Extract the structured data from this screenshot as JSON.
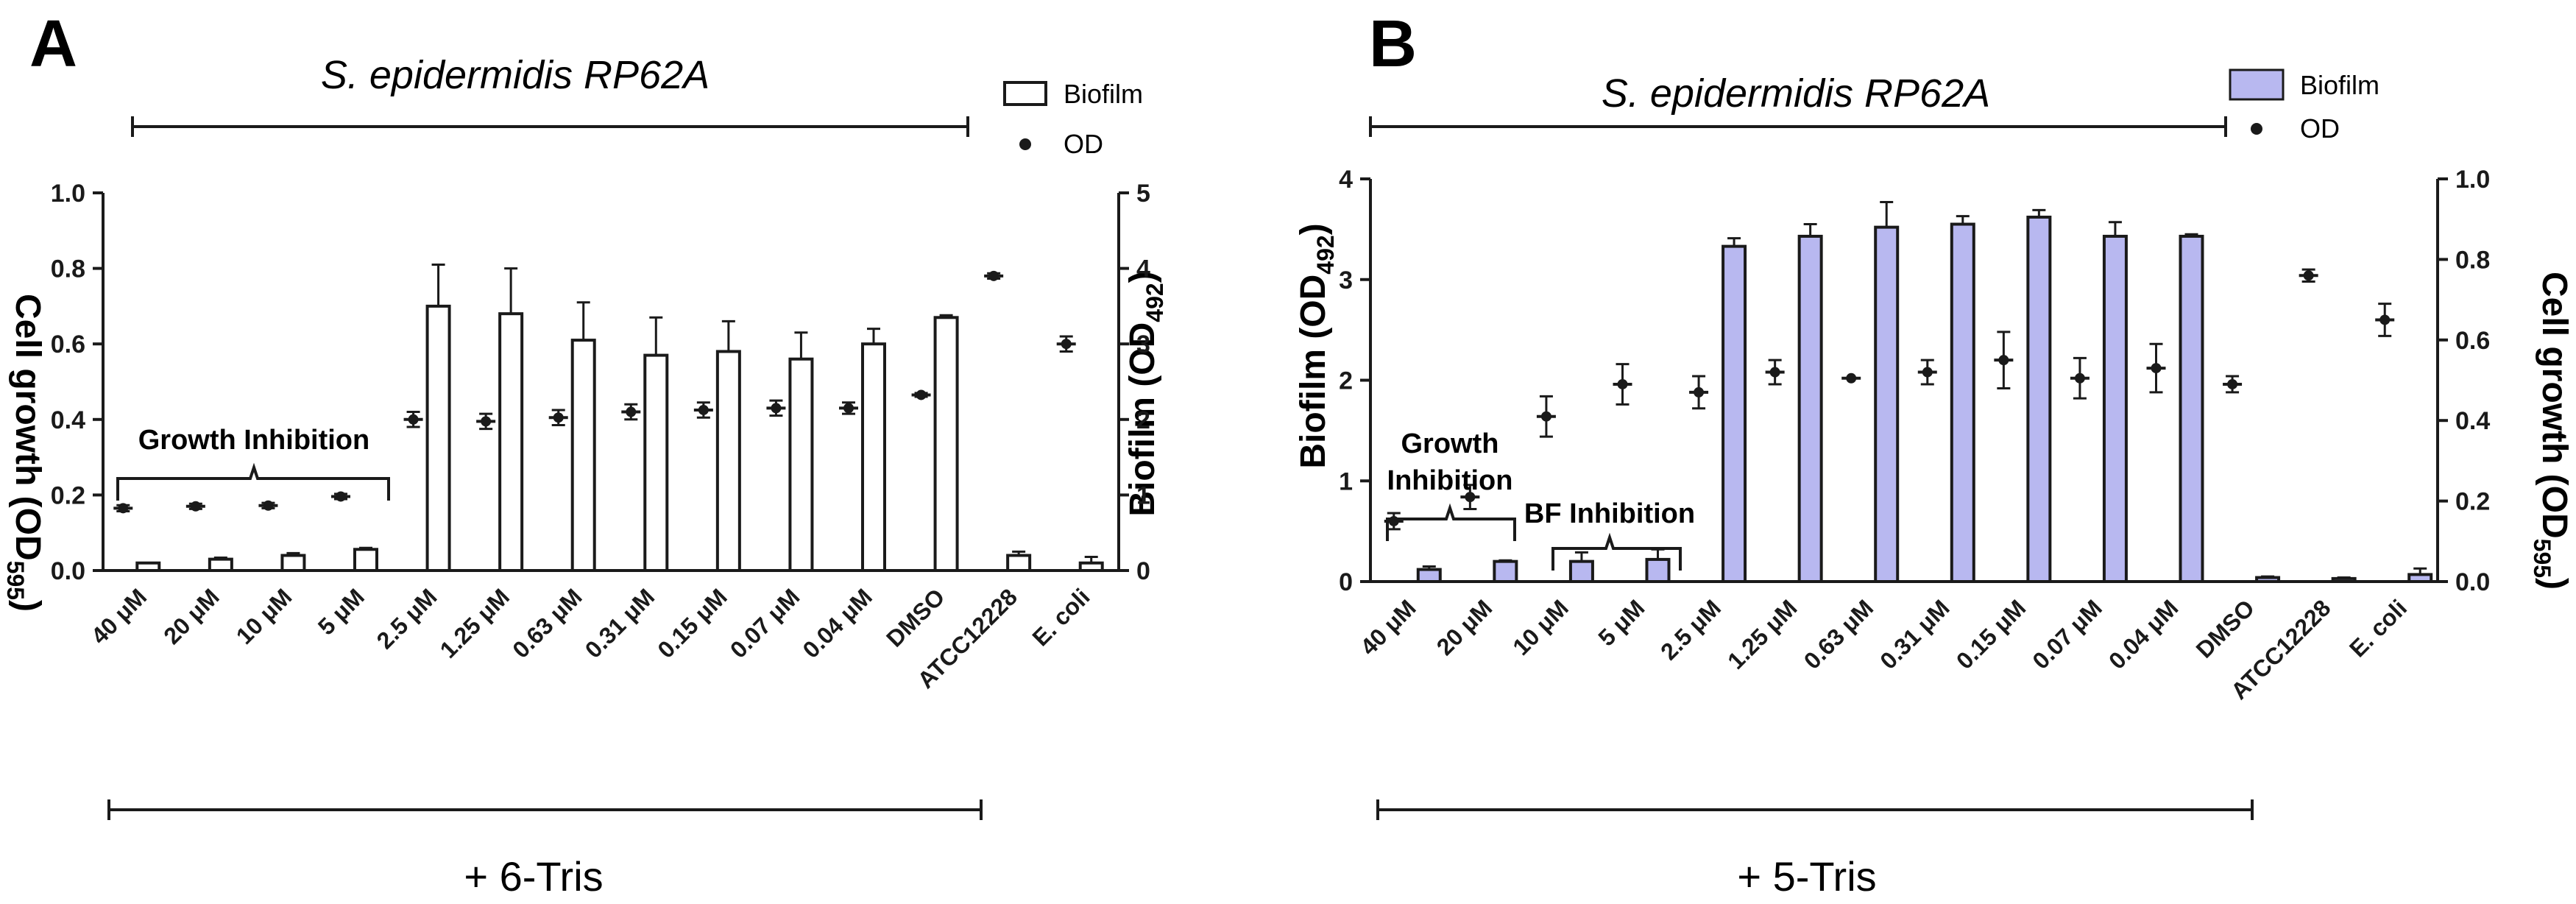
{
  "colors": {
    "bar_a_fill": "#ffffff",
    "bar_b_fill": "#b8b8f0",
    "stroke": "#1a1a1a",
    "background": "#ffffff"
  },
  "chart_data": [
    {
      "type": "bar",
      "panel_label": "A",
      "title": "S. epidermidis RP62A",
      "compound_label": "+ 6-Tris",
      "annotations": [
        "Growth Inhibition"
      ],
      "categories": [
        "40 μM",
        "20 μM",
        "10 μM",
        "5 μM",
        "2.5 μM",
        "1.25 μM",
        "0.63 μM",
        "0.31 μM",
        "0.15 μM",
        "0.07 μM",
        "0.04 μM",
        "DMSO",
        "ATCC12228",
        "E. coli"
      ],
      "left_axis": {
        "label_main": "Cell growth (OD",
        "label_sub": "595",
        "label_close": ")",
        "ylim": [
          0,
          1.0
        ],
        "ticks": [
          "0.0",
          "0.2",
          "0.4",
          "0.6",
          "0.8",
          "1.0"
        ]
      },
      "right_axis": {
        "label_main": "Biofilm (OD",
        "label_sub": "492",
        "label_close": ")",
        "ylim": [
          0,
          5
        ],
        "ticks": [
          "0",
          "1",
          "2",
          "3",
          "4",
          "5"
        ]
      },
      "legend": {
        "position": "top-right",
        "bar_label": "Biofilm",
        "dot_label": "OD"
      },
      "series": [
        {
          "name": "Biofilm",
          "axis": "right",
          "kind": "bar",
          "values": [
            0.1,
            0.15,
            0.2,
            0.28,
            3.5,
            3.4,
            3.05,
            2.85,
            2.9,
            2.8,
            3.0,
            3.35,
            0.2,
            0.1
          ],
          "errors": [
            0.0,
            0.02,
            0.03,
            0.02,
            0.55,
            0.6,
            0.5,
            0.5,
            0.4,
            0.35,
            0.2,
            0.03,
            0.05,
            0.08
          ]
        },
        {
          "name": "OD",
          "axis": "left",
          "kind": "dot",
          "values": [
            0.165,
            0.17,
            0.172,
            0.196,
            0.4,
            0.395,
            0.405,
            0.42,
            0.425,
            0.43,
            0.43,
            0.465,
            0.78,
            0.6
          ],
          "errors": [
            0.008,
            0.007,
            0.007,
            0.007,
            0.02,
            0.02,
            0.02,
            0.02,
            0.02,
            0.02,
            0.015,
            0.005,
            0.007,
            0.02
          ]
        }
      ]
    },
    {
      "type": "bar",
      "panel_label": "B",
      "title": "S. epidermidis RP62A",
      "compound_label": "+ 5-Tris",
      "annotations": [
        "Growth",
        "Inhibition",
        "BF Inhibition"
      ],
      "categories": [
        "40 μM",
        "20 μM",
        "10 μM",
        "5 μM",
        "2.5 μM",
        "1.25 μM",
        "0.63 μM",
        "0.31 μM",
        "0.15 μM",
        "0.07 μM",
        "0.04 μM",
        "DMSO",
        "ATCC12228",
        "E. coli"
      ],
      "left_axis": {
        "label_main": "Biofilm (OD",
        "label_sub": "492",
        "label_close": ")",
        "ylim": [
          0,
          4
        ],
        "ticks": [
          "0",
          "1",
          "2",
          "3",
          "4"
        ]
      },
      "right_axis": {
        "label_main": "Cell growth (OD",
        "label_sub": "595",
        "label_close": ")",
        "ylim": [
          0,
          1.0
        ],
        "ticks": [
          "0.0",
          "0.2",
          "0.4",
          "0.6",
          "0.8",
          "1.0"
        ]
      },
      "legend": {
        "position": "top-right",
        "bar_label": "Biofilm",
        "dot_label": "OD"
      },
      "series": [
        {
          "name": "Biofilm",
          "axis": "left",
          "kind": "bar",
          "values": [
            0.12,
            0.2,
            0.2,
            0.22,
            3.33,
            3.43,
            3.52,
            3.55,
            3.62,
            3.43,
            3.43,
            0.04,
            0.03,
            0.07
          ],
          "errors": [
            0.03,
            0.01,
            0.09,
            0.1,
            0.08,
            0.12,
            0.25,
            0.08,
            0.07,
            0.14,
            0.02,
            0.01,
            0.01,
            0.06
          ]
        },
        {
          "name": "OD",
          "axis": "right",
          "kind": "dot",
          "values": [
            0.15,
            0.21,
            0.41,
            0.49,
            0.47,
            0.52,
            0.505,
            0.52,
            0.55,
            0.505,
            0.53,
            0.49,
            0.76,
            0.65
          ],
          "errors": [
            0.02,
            0.03,
            0.05,
            0.05,
            0.04,
            0.03,
            0.0,
            0.03,
            0.07,
            0.05,
            0.06,
            0.02,
            0.015,
            0.04
          ]
        }
      ]
    }
  ]
}
